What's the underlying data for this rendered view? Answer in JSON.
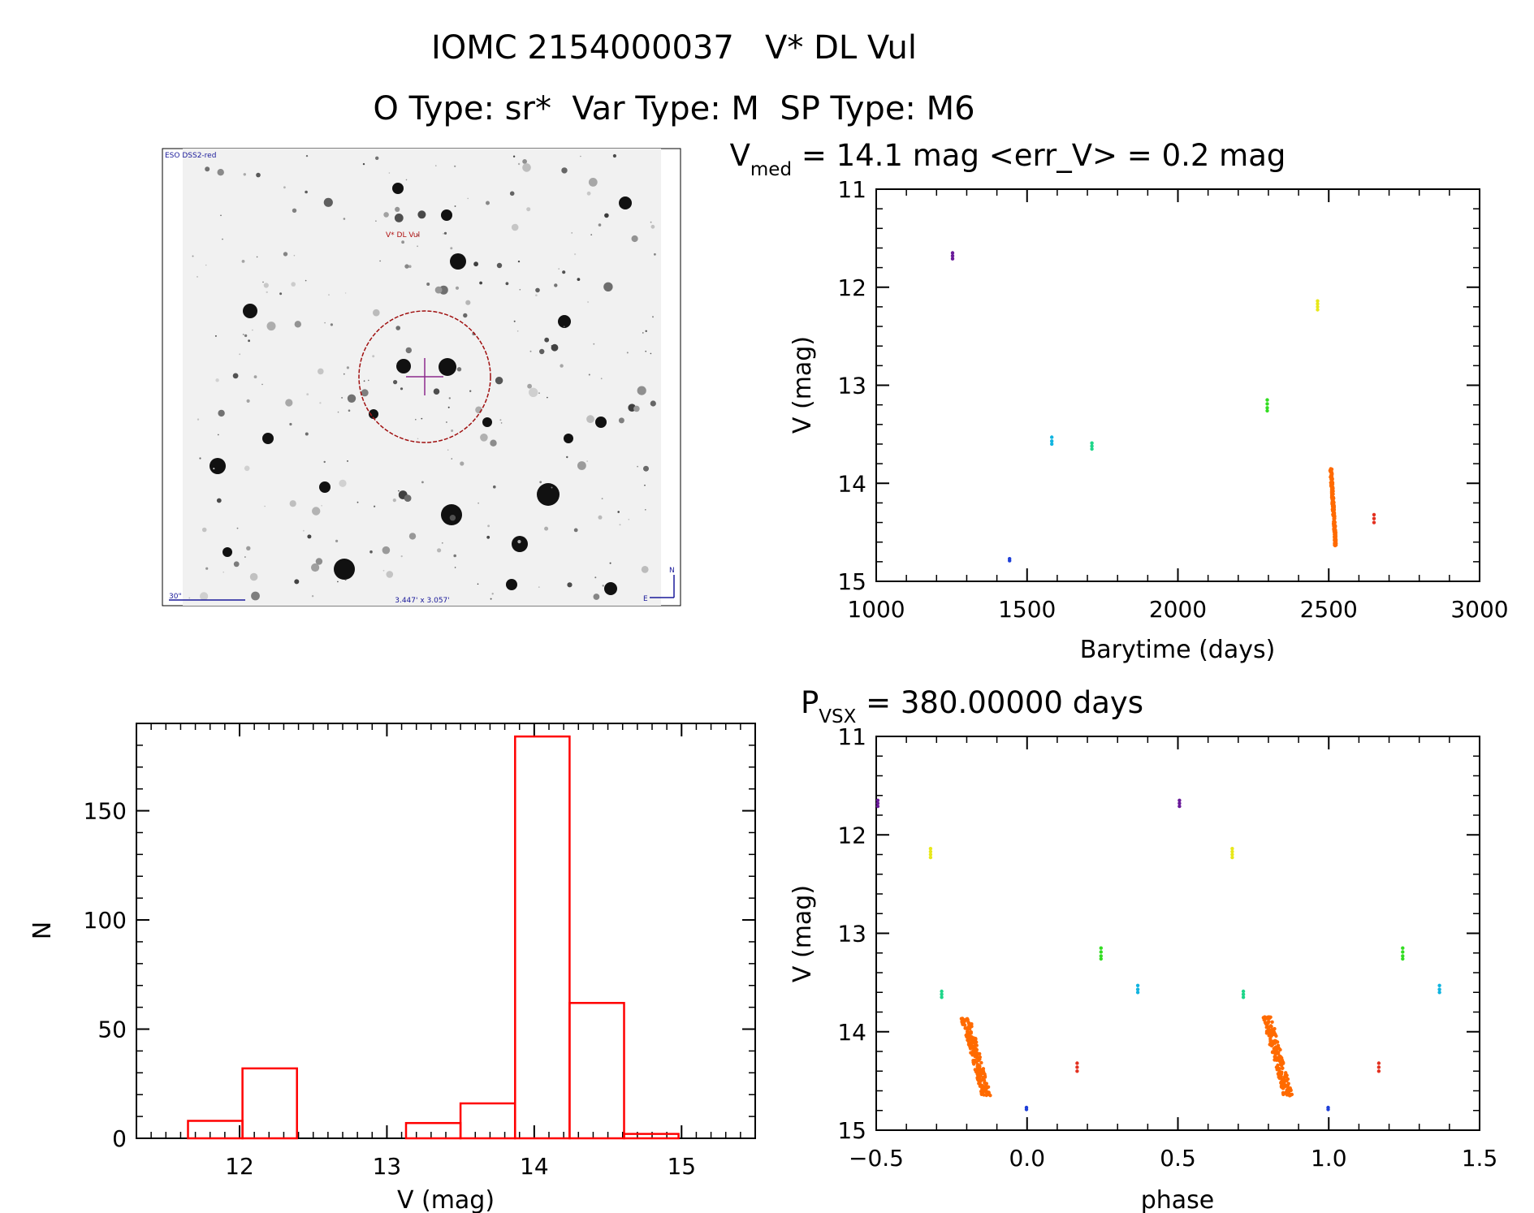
{
  "header": {
    "title": "IOMC 2154000037   V* DL Vul",
    "subtitle": "O Type: sr*  Var Type: M  SP Type: M6"
  },
  "finder": {
    "survey_label": "ESO DSS2-red",
    "target_label": "V* DL Vul",
    "scale_label": "30\"",
    "fov_label": "3.447' x 3.057'",
    "north_label": "N",
    "east_label": "E"
  },
  "chart_data": [
    {
      "id": "lightcurve",
      "type": "scatter",
      "title_main": "V",
      "title_sub": "med",
      "title_rest": " = 14.1 mag <err_V> = 0.2 mag",
      "xlabel": "Barytime (days)",
      "ylabel": "V (mag)",
      "xlim": [
        1000,
        3000
      ],
      "ylim": [
        11,
        15
      ],
      "y_inverted": true,
      "xticks": [
        1000,
        1500,
        2000,
        2500,
        3000
      ],
      "yticks": [
        11,
        12,
        13,
        14,
        15
      ],
      "series": [
        {
          "name": "epoch-1",
          "color": "#6a1b9a",
          "points": [
            [
              1253,
              11.65
            ],
            [
              1253,
              11.68
            ],
            [
              1253,
              11.71
            ]
          ]
        },
        {
          "name": "epoch-2",
          "color": "#1e3fd8",
          "points": [
            [
              1442,
              14.77
            ],
            [
              1442,
              14.79
            ]
          ]
        },
        {
          "name": "epoch-3",
          "color": "#10b4e0",
          "points": [
            [
              1582,
              13.53
            ],
            [
              1582,
              13.57
            ],
            [
              1582,
              13.6
            ]
          ]
        },
        {
          "name": "epoch-4",
          "color": "#1fd68a",
          "points": [
            [
              1715,
              13.59
            ],
            [
              1715,
              13.62
            ],
            [
              1715,
              13.65
            ]
          ]
        },
        {
          "name": "epoch-5",
          "color": "#33dd22",
          "points": [
            [
              2296,
              13.15
            ],
            [
              2296,
              13.19
            ],
            [
              2296,
              13.23
            ],
            [
              2296,
              13.26
            ]
          ]
        },
        {
          "name": "epoch-6",
          "color": "#e8e81a",
          "points": [
            [
              2463,
              12.14
            ],
            [
              2463,
              12.17
            ],
            [
              2463,
              12.2
            ],
            [
              2463,
              12.23
            ]
          ]
        },
        {
          "name": "epoch-7",
          "color": "#e33120",
          "points": [
            [
              2650,
              14.32
            ],
            [
              2650,
              14.36
            ],
            [
              2650,
              14.4
            ]
          ]
        }
      ],
      "dense_series": {
        "name": "main-season",
        "color": "#ff6a00",
        "count": 183,
        "x_range": [
          2505,
          2528
        ],
        "y_range": [
          13.85,
          14.65
        ],
        "trend_x": [
          2507,
          2523
        ]
      }
    },
    {
      "id": "histogram",
      "type": "bar",
      "xlabel": "V (mag)",
      "ylabel": "N",
      "xlim": [
        11.3,
        15.5
      ],
      "ylim": [
        0,
        190
      ],
      "xticks": [
        12,
        13,
        14,
        15
      ],
      "yticks": [
        0,
        50,
        100,
        150
      ],
      "bin_edges": [
        11.65,
        12.02,
        12.39,
        12.76,
        13.13,
        13.5,
        13.87,
        14.24,
        14.61,
        14.98
      ],
      "values": [
        8,
        32,
        0,
        0,
        7,
        16,
        184,
        62,
        2
      ],
      "color": "#ff0000"
    },
    {
      "id": "phased",
      "type": "scatter",
      "title_main": "P",
      "title_sub": "VSX",
      "title_rest": " = 380.00000 days",
      "xlabel": "phase",
      "ylabel": "V (mag)",
      "xlim": [
        -0.5,
        1.5
      ],
      "ylim": [
        11,
        15
      ],
      "y_inverted": true,
      "xticks": [
        "-0.5",
        "0.0",
        "0.5",
        "1.0",
        "1.5"
      ],
      "yticks": [
        11,
        12,
        13,
        14,
        15
      ],
      "series": [
        {
          "name": "epoch-1",
          "color": "#6a1b9a",
          "phases": [
            -0.495,
            0.505
          ],
          "mags": [
            11.65,
            11.68,
            11.71
          ]
        },
        {
          "name": "epoch-2",
          "color": "#1e3fd8",
          "phases": [
            -0.002,
            0.998
          ],
          "mags": [
            14.77,
            14.79
          ]
        },
        {
          "name": "epoch-3",
          "color": "#10b4e0",
          "phases": [
            0.367,
            1.367
          ],
          "mags": [
            13.53,
            13.57,
            13.6
          ]
        },
        {
          "name": "epoch-4",
          "color": "#1fd68a",
          "phases": [
            -0.283,
            0.717
          ],
          "mags": [
            13.59,
            13.62,
            13.65
          ]
        },
        {
          "name": "epoch-5",
          "color": "#33dd22",
          "phases": [
            0.245,
            1.245
          ],
          "mags": [
            13.15,
            13.19,
            13.23,
            13.26
          ]
        },
        {
          "name": "epoch-6",
          "color": "#e8e81a",
          "phases": [
            -0.32,
            0.68
          ],
          "mags": [
            12.14,
            12.17,
            12.2,
            12.23
          ]
        },
        {
          "name": "epoch-7",
          "color": "#e33120",
          "phases": [
            0.166,
            1.166
          ],
          "mags": [
            14.32,
            14.36,
            14.4
          ]
        }
      ],
      "dense_series": {
        "name": "main-season",
        "color": "#ff6a00",
        "count": 183,
        "phase_range": [
          -0.205,
          -0.135
        ],
        "y_range": [
          13.85,
          14.65
        ],
        "offsets": [
          0,
          1
        ]
      }
    }
  ]
}
